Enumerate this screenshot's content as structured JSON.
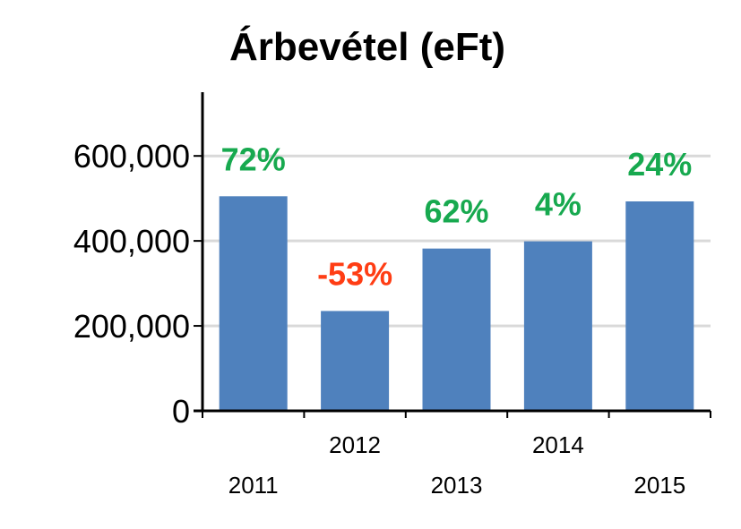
{
  "chart_data": {
    "type": "bar",
    "title": "Árbevétel (eFt)",
    "categories": [
      "2011",
      "2012",
      "2013",
      "2014",
      "2015"
    ],
    "values": [
      505000,
      235000,
      382000,
      399000,
      493000
    ],
    "data_labels": [
      "72%",
      "-53%",
      "62%",
      "4%",
      "24%"
    ],
    "data_label_colors": [
      "#17a94f",
      "#ff3d14",
      "#17a94f",
      "#17a94f",
      "#17a94f"
    ],
    "yticks": [
      "0",
      "200,000",
      "400,000",
      "600,000"
    ],
    "ytick_values": [
      0,
      200000,
      400000,
      600000
    ],
    "ylim": [
      0,
      750000
    ],
    "grid": true,
    "bar_color": "#4f81bd",
    "grid_color": "#d9d9d9"
  }
}
